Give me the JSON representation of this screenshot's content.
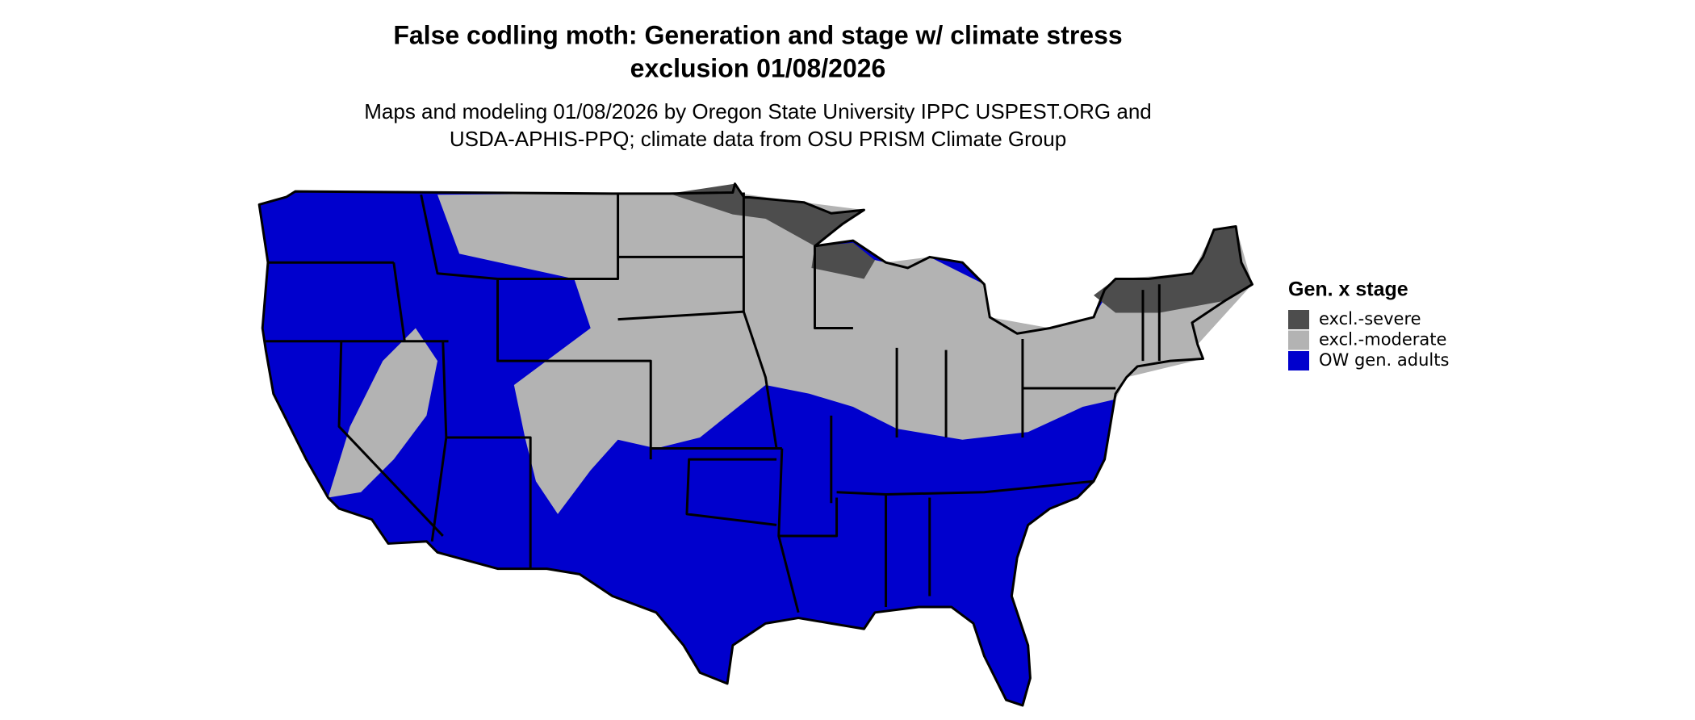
{
  "title": [
    "False codling moth: Generation and stage w/ climate stress",
    "exclusion 01/08/2026"
  ],
  "subtitle": [
    "Maps and modeling 01/08/2026 by Oregon State University IPPC USPEST.ORG and",
    "USDA-APHIS-PPQ; climate data from OSU PRISM Climate Group"
  ],
  "legend": {
    "title": "Gen. x stage",
    "items": [
      {
        "label": "excl.-severe",
        "color": "#4d4d4d"
      },
      {
        "label": "excl.-moderate",
        "color": "#b3b3b3"
      },
      {
        "label": "OW gen. adults",
        "color": "#0000cd"
      }
    ]
  }
}
